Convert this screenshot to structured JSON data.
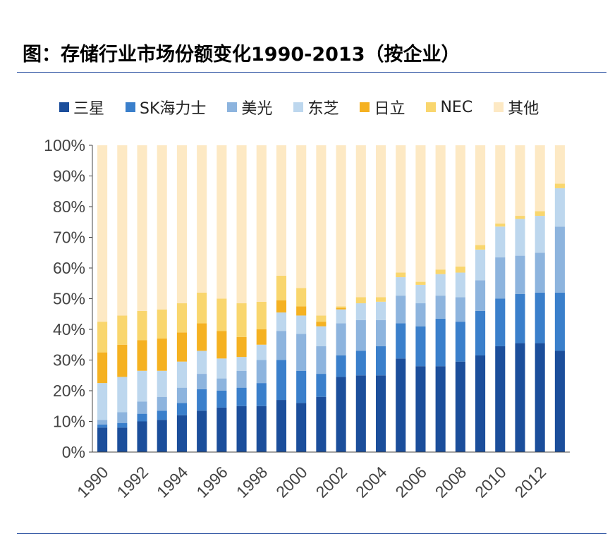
{
  "title": "图：存储行业市场份额变化1990-2013（按企业）",
  "chart_data": {
    "type": "bar",
    "stacked": true,
    "ylim": [
      0,
      100
    ],
    "yticks": [
      "0%",
      "10%",
      "20%",
      "30%",
      "40%",
      "50%",
      "60%",
      "70%",
      "80%",
      "90%",
      "100%"
    ],
    "categories": [
      "1990",
      "1991",
      "1992",
      "1993",
      "1994",
      "1995",
      "1996",
      "1997",
      "1998",
      "1999",
      "2000",
      "2001",
      "2002",
      "2003",
      "2004",
      "2005",
      "2006",
      "2007",
      "2008",
      "2009",
      "2010",
      "2011",
      "2012",
      "2013"
    ],
    "xtick_labels": [
      "1990",
      "",
      "1992",
      "",
      "1994",
      "",
      "1996",
      "",
      "1998",
      "",
      "2000",
      "",
      "2002",
      "",
      "2004",
      "",
      "2006",
      "",
      "2008",
      "",
      "2010",
      "",
      "2012",
      ""
    ],
    "legend_position": "top",
    "series": [
      {
        "name": "三星",
        "color": "#1b4e9b",
        "values": [
          8,
          8,
          10,
          10.5,
          12,
          13.5,
          14.5,
          15,
          15,
          17,
          16,
          18,
          24.5,
          25,
          25,
          30.5,
          28,
          28,
          29.5,
          31.5,
          34.5,
          35.5,
          35.5,
          33
        ]
      },
      {
        "name": "SK海力士",
        "color": "#3a7fcb",
        "values": [
          1,
          1.5,
          2.5,
          3,
          4,
          7,
          5.5,
          6,
          7.5,
          13,
          10.5,
          7.5,
          7,
          8,
          9.5,
          11.5,
          13,
          15.5,
          13,
          14.5,
          15.5,
          16,
          16.5,
          19
        ]
      },
      {
        "name": "美光",
        "color": "#8db4de",
        "values": [
          1.5,
          3.5,
          4,
          4.5,
          5,
          5,
          4,
          5.5,
          7.5,
          9.5,
          12,
          9,
          10.5,
          10,
          8.5,
          9,
          7.5,
          7.5,
          8,
          10,
          13.5,
          12.5,
          13,
          21.5
        ]
      },
      {
        "name": "东芝",
        "color": "#bdd7ee",
        "values": [
          12,
          11.5,
          10,
          8.5,
          8.5,
          7.5,
          6.5,
          4.5,
          5,
          6,
          6,
          6.5,
          4.5,
          5.5,
          6,
          6,
          6,
          7,
          8,
          10,
          10,
          12,
          12,
          12.5
        ]
      },
      {
        "name": "日立",
        "color": "#f5b121",
        "values": [
          10,
          10.5,
          10,
          10.5,
          9.5,
          9,
          9,
          6.5,
          5,
          4,
          3,
          1.5,
          0.5,
          0,
          0,
          0,
          0,
          0,
          0,
          0,
          0,
          0,
          0,
          0
        ]
      },
      {
        "name": "NEC",
        "color": "#f9d66e",
        "values": [
          10,
          9.5,
          9.5,
          9.5,
          9.5,
          10,
          10.5,
          11,
          9,
          8,
          6,
          2,
          0.5,
          2,
          1.5,
          1.5,
          1,
          1.5,
          2,
          1.5,
          1,
          1,
          1.5,
          1.5
        ]
      },
      {
        "name": "其他",
        "color": "#fde9c4",
        "values": [
          57.5,
          55.5,
          54,
          53.5,
          51.5,
          48,
          50,
          51.5,
          51,
          42.5,
          46.5,
          55.5,
          52.5,
          49.5,
          49.5,
          41.5,
          44.5,
          40.5,
          39.5,
          32.5,
          25.5,
          23,
          21.5,
          12.5
        ]
      }
    ]
  }
}
